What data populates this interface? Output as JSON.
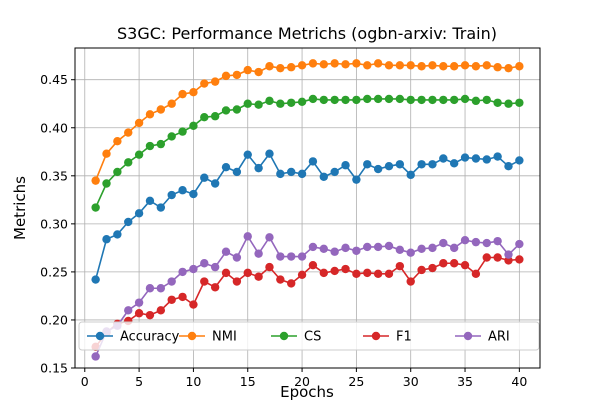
{
  "chart_data": {
    "type": "line",
    "title": "S3GC: Performance Metrichs (ogbn-arxiv: Train)",
    "xlabel": "Epochs",
    "ylabel": "Metrichs",
    "xlim": [
      -0.9,
      41.9
    ],
    "ylim": [
      0.15,
      0.483
    ],
    "xticks": [
      0,
      5,
      10,
      15,
      20,
      25,
      30,
      35,
      40
    ],
    "yticks": [
      0.15,
      0.2,
      0.25,
      0.3,
      0.35,
      0.4,
      0.45
    ],
    "ytick_labels": [
      "0.15",
      "0.20",
      "0.25",
      "0.30",
      "0.35",
      "0.40",
      "0.45"
    ],
    "grid": true,
    "legend_position": "lower-center",
    "x": [
      1,
      2,
      3,
      4,
      5,
      6,
      7,
      8,
      9,
      10,
      11,
      12,
      13,
      14,
      15,
      16,
      17,
      18,
      19,
      20,
      21,
      22,
      23,
      24,
      25,
      26,
      27,
      28,
      29,
      30,
      31,
      32,
      33,
      34,
      35,
      36,
      37,
      38,
      39,
      40
    ],
    "series": [
      {
        "name": "Accuracy",
        "color": "#1f77b4",
        "values": [
          0.242,
          0.284,
          0.289,
          0.302,
          0.311,
          0.324,
          0.317,
          0.33,
          0.335,
          0.331,
          0.348,
          0.342,
          0.359,
          0.354,
          0.372,
          0.358,
          0.373,
          0.352,
          0.354,
          0.352,
          0.365,
          0.349,
          0.354,
          0.361,
          0.346,
          0.362,
          0.357,
          0.36,
          0.362,
          0.351,
          0.362,
          0.362,
          0.368,
          0.363,
          0.369,
          0.368,
          0.367,
          0.37,
          0.36,
          0.366
        ]
      },
      {
        "name": "NMI",
        "color": "#ff7f0e",
        "values": [
          0.345,
          0.373,
          0.386,
          0.395,
          0.405,
          0.414,
          0.419,
          0.425,
          0.435,
          0.437,
          0.446,
          0.448,
          0.454,
          0.455,
          0.46,
          0.458,
          0.464,
          0.462,
          0.463,
          0.465,
          0.467,
          0.466,
          0.467,
          0.466,
          0.467,
          0.465,
          0.467,
          0.465,
          0.465,
          0.465,
          0.464,
          0.465,
          0.464,
          0.464,
          0.465,
          0.464,
          0.465,
          0.463,
          0.462,
          0.464
        ]
      },
      {
        "name": "CS",
        "color": "#2ca02c",
        "values": [
          0.317,
          0.342,
          0.354,
          0.364,
          0.372,
          0.381,
          0.383,
          0.391,
          0.396,
          0.402,
          0.411,
          0.412,
          0.418,
          0.419,
          0.425,
          0.424,
          0.428,
          0.425,
          0.426,
          0.427,
          0.43,
          0.429,
          0.429,
          0.429,
          0.429,
          0.43,
          0.43,
          0.43,
          0.43,
          0.429,
          0.429,
          0.429,
          0.429,
          0.429,
          0.43,
          0.428,
          0.429,
          0.426,
          0.425,
          0.426
        ]
      },
      {
        "name": "F1",
        "color": "#d62728",
        "values": [
          0.172,
          0.187,
          0.196,
          0.199,
          0.207,
          0.205,
          0.21,
          0.221,
          0.224,
          0.216,
          0.24,
          0.234,
          0.249,
          0.24,
          0.249,
          0.245,
          0.255,
          0.242,
          0.238,
          0.247,
          0.257,
          0.249,
          0.251,
          0.253,
          0.248,
          0.249,
          0.248,
          0.248,
          0.256,
          0.24,
          0.252,
          0.254,
          0.259,
          0.259,
          0.257,
          0.248,
          0.265,
          0.265,
          0.262,
          0.263
        ]
      },
      {
        "name": "ARI",
        "color": "#9467bd",
        "values": [
          0.162,
          0.188,
          0.194,
          0.21,
          0.218,
          0.233,
          0.233,
          0.24,
          0.25,
          0.253,
          0.259,
          0.255,
          0.271,
          0.265,
          0.287,
          0.269,
          0.286,
          0.266,
          0.266,
          0.266,
          0.276,
          0.274,
          0.271,
          0.275,
          0.272,
          0.276,
          0.276,
          0.277,
          0.273,
          0.27,
          0.274,
          0.275,
          0.28,
          0.275,
          0.283,
          0.281,
          0.28,
          0.282,
          0.268,
          0.279
        ]
      }
    ]
  }
}
